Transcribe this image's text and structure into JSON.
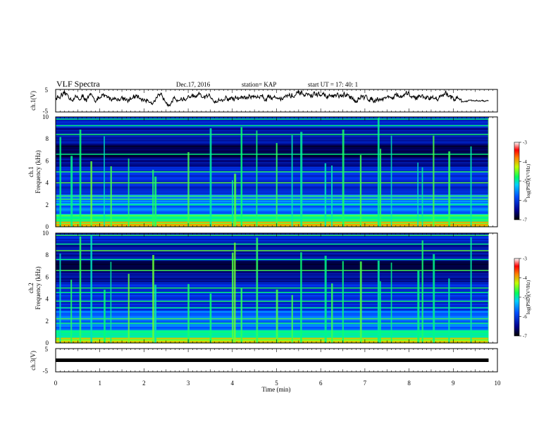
{
  "header": {
    "title": "VLF Spectra",
    "date": "Dec.17, 2016",
    "station": "station= KAP",
    "start": "start  UT =   17: 40: 1"
  },
  "chart_data": [
    {
      "type": "line",
      "name": "waveform_ch1",
      "ylabel": "ch.1(V)",
      "ylim": [
        -5,
        5
      ],
      "yticks": [
        "5",
        "-5"
      ],
      "xlim": [
        0,
        10
      ],
      "x_end": 9.8,
      "level_by_minute": [
        {
          "x": 0.0,
          "y": 1.5
        },
        {
          "x": 0.5,
          "y": 1.2
        },
        {
          "x": 1.0,
          "y": 1.0
        },
        {
          "x": 1.5,
          "y": 1.4
        },
        {
          "x": 2.0,
          "y": 0.5
        },
        {
          "x": 2.5,
          "y": 0.6
        },
        {
          "x": 3.0,
          "y": 1.2
        },
        {
          "x": 3.5,
          "y": 1.0
        },
        {
          "x": 4.0,
          "y": 0.8
        },
        {
          "x": 4.5,
          "y": 2.0
        },
        {
          "x": 5.0,
          "y": 1.8
        },
        {
          "x": 5.5,
          "y": 2.2
        },
        {
          "x": 6.0,
          "y": 2.5
        },
        {
          "x": 6.5,
          "y": 1.4
        },
        {
          "x": 7.0,
          "y": 1.0
        },
        {
          "x": 7.5,
          "y": 1.8
        },
        {
          "x": 8.0,
          "y": 1.6
        },
        {
          "x": 8.5,
          "y": 1.7
        },
        {
          "x": 9.0,
          "y": 2.2
        },
        {
          "x": 9.2,
          "y": -0.2
        },
        {
          "x": 9.8,
          "y": -0.3
        }
      ],
      "color": "#000000"
    },
    {
      "type": "heatmap",
      "name": "spectrogram_ch1",
      "ylabel": "ch.1\nFrequency (kHz)",
      "ylim": [
        0,
        10
      ],
      "yticks": [
        "0",
        "2",
        "4",
        "6",
        "8",
        "10"
      ],
      "xlim": [
        0,
        10
      ],
      "x_end": 9.8,
      "colorbar": {
        "label": "log(PSD)(V²/Hz)",
        "range": [
          -7,
          -3
        ],
        "ticks": [
          "-3",
          "-4",
          "-5",
          "-6",
          "-7"
        ]
      },
      "strong_lines_khz": [
        0.3,
        1.0,
        2.0,
        2.5,
        2.8,
        4.0,
        5.0,
        6.6,
        8.4,
        9.2,
        9.8
      ],
      "burst_times_min": [
        0.1,
        0.35,
        0.55,
        0.8,
        1.1,
        1.25,
        1.65,
        2.2,
        2.25,
        3.0,
        3.5,
        4.0,
        4.05,
        4.2,
        4.55,
        5.0,
        5.35,
        5.55,
        6.1,
        6.25,
        6.5,
        6.9,
        7.3,
        7.35,
        7.6,
        8.2,
        8.3,
        8.55,
        8.9,
        9.4,
        9.8
      ]
    },
    {
      "type": "heatmap",
      "name": "spectrogram_ch2",
      "ylabel": "ch.2\nFrequency (kHz)",
      "ylim": [
        0,
        10
      ],
      "yticks": [
        "0",
        "2",
        "4",
        "6",
        "8",
        "10"
      ],
      "xlim": [
        0,
        10
      ],
      "x_end": 9.8,
      "colorbar": {
        "label": "log(PSD)(V²/Hz)",
        "range": [
          -7,
          -3
        ],
        "ticks": [
          "-3",
          "-4",
          "-5",
          "-6",
          "-7"
        ]
      },
      "strong_lines_khz": [
        0.3,
        1.0,
        1.8,
        2.2,
        3.2,
        3.8,
        4.6,
        5.0,
        6.6,
        7.6,
        8.4,
        9.0,
        9.8
      ],
      "burst_times_min": [
        0.1,
        0.35,
        0.55,
        0.8,
        1.1,
        1.25,
        1.65,
        2.2,
        2.25,
        3.0,
        3.5,
        4.0,
        4.05,
        4.2,
        4.55,
        5.0,
        5.35,
        5.55,
        6.1,
        6.25,
        6.5,
        6.9,
        7.3,
        7.35,
        7.6,
        8.2,
        8.3,
        8.55,
        8.9,
        9.4,
        9.8
      ]
    },
    {
      "type": "line",
      "name": "waveform_ch3",
      "ylabel": "ch.3(V)",
      "ylim": [
        -5,
        5
      ],
      "yticks": [
        "5",
        "-5"
      ],
      "xlim": [
        0,
        10
      ],
      "x_end": 9.8,
      "level_by_minute": [
        {
          "x": 0,
          "y": 0
        },
        {
          "x": 9.8,
          "y": 0
        }
      ],
      "color": "#000000"
    }
  ],
  "xaxis": {
    "label": "Time (min)",
    "ticks": [
      "0",
      "1",
      "2",
      "3",
      "4",
      "5",
      "6",
      "7",
      "8",
      "9",
      "10"
    ]
  }
}
